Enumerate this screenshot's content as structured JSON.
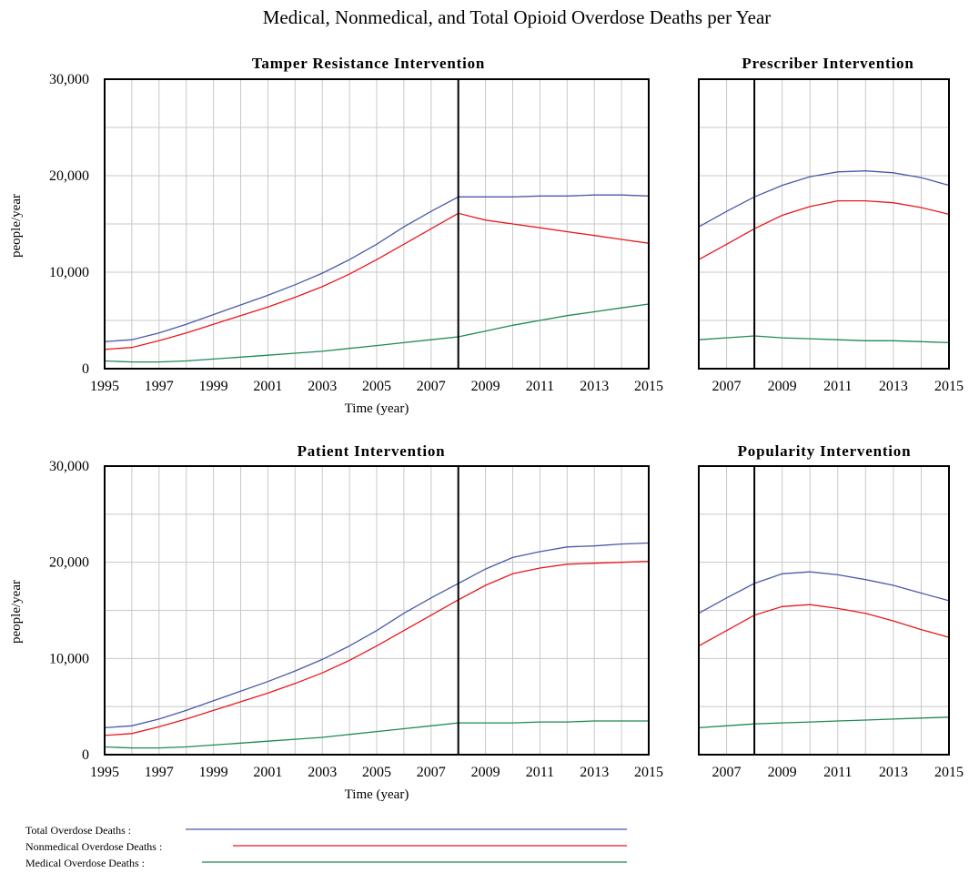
{
  "chart_data": {
    "title": "Medical, Nonmedical, and Total Opioid Overdose Deaths per Year",
    "type": "line",
    "series_styles": [
      {
        "key": "total",
        "name": "Total Overdose Deaths :",
        "color": "#4a5aa8"
      },
      {
        "key": "nonmedical",
        "name": "Nonmedical Overdose Deaths :",
        "color": "#e8191e"
      },
      {
        "key": "medical",
        "name": "Medical Overdose Deaths :",
        "color": "#1e8a55"
      }
    ],
    "panels": [
      {
        "id": "tamper",
        "title": "Tamper Resistance Intervention",
        "xlabel": "Time (year)",
        "ylabel": "people/year",
        "xlim": [
          1995,
          2015
        ],
        "ylim": [
          0,
          30000
        ],
        "xticks": [
          "1995",
          "1997",
          "1999",
          "2001",
          "2003",
          "2005",
          "2007",
          "2009",
          "2011",
          "2013",
          "2015"
        ],
        "yticks": [
          "0",
          "10,000",
          "20,000",
          "30,000"
        ],
        "intervention_year": 2008,
        "x": [
          1995,
          1996,
          1997,
          1998,
          1999,
          2000,
          2001,
          2002,
          2003,
          2004,
          2005,
          2006,
          2007,
          2008,
          2009,
          2010,
          2011,
          2012,
          2013,
          2014,
          2015
        ],
        "series": {
          "total": [
            2800,
            3000,
            3700,
            4600,
            5600,
            6600,
            7600,
            8700,
            9900,
            11300,
            12900,
            14700,
            16300,
            17800,
            17800,
            17800,
            17900,
            17900,
            18000,
            18000,
            17900
          ],
          "nonmedical": [
            2000,
            2200,
            2900,
            3700,
            4600,
            5500,
            6400,
            7400,
            8500,
            9800,
            11300,
            12900,
            14500,
            16100,
            15400,
            15000,
            14600,
            14200,
            13800,
            13400,
            13000
          ],
          "medical": [
            800,
            700,
            700,
            800,
            1000,
            1200,
            1400,
            1600,
            1800,
            2100,
            2400,
            2700,
            3000,
            3300,
            3900,
            4500,
            5000,
            5500,
            5900,
            6300,
            6700
          ]
        }
      },
      {
        "id": "prescriber",
        "title": "Prescriber Intervention",
        "xlabel": "",
        "ylabel": "",
        "xlim": [
          2006,
          2015
        ],
        "ylim": [
          0,
          30000
        ],
        "xticks": [
          "2007",
          "2009",
          "2011",
          "2013",
          "2015"
        ],
        "yticks": [],
        "intervention_year": 2008,
        "x": [
          2006,
          2007,
          2008,
          2009,
          2010,
          2011,
          2012,
          2013,
          2014,
          2015
        ],
        "series": {
          "total": [
            14700,
            16300,
            17800,
            19000,
            19900,
            20400,
            20500,
            20300,
            19800,
            19000
          ],
          "nonmedical": [
            11300,
            12900,
            14500,
            15900,
            16800,
            17400,
            17400,
            17200,
            16700,
            16000
          ],
          "medical": [
            3000,
            3200,
            3400,
            3200,
            3100,
            3000,
            2900,
            2900,
            2800,
            2700
          ]
        }
      },
      {
        "id": "patient",
        "title": "Patient Intervention",
        "xlabel": "Time (year)",
        "ylabel": "people/year",
        "xlim": [
          1995,
          2015
        ],
        "ylim": [
          0,
          30000
        ],
        "xticks": [
          "1995",
          "1997",
          "1999",
          "2001",
          "2003",
          "2005",
          "2007",
          "2009",
          "2011",
          "2013",
          "2015"
        ],
        "yticks": [
          "0",
          "10,000",
          "20,000",
          "30,000"
        ],
        "intervention_year": 2008,
        "x": [
          1995,
          1996,
          1997,
          1998,
          1999,
          2000,
          2001,
          2002,
          2003,
          2004,
          2005,
          2006,
          2007,
          2008,
          2009,
          2010,
          2011,
          2012,
          2013,
          2014,
          2015
        ],
        "series": {
          "total": [
            2800,
            3000,
            3700,
            4600,
            5600,
            6600,
            7600,
            8700,
            9900,
            11300,
            12900,
            14700,
            16300,
            17800,
            19300,
            20500,
            21100,
            21600,
            21700,
            21900,
            22000
          ],
          "nonmedical": [
            2000,
            2200,
            2900,
            3700,
            4600,
            5500,
            6400,
            7400,
            8500,
            9800,
            11300,
            12900,
            14500,
            16100,
            17600,
            18800,
            19400,
            19800,
            19900,
            20000,
            20100
          ],
          "medical": [
            800,
            700,
            700,
            800,
            1000,
            1200,
            1400,
            1600,
            1800,
            2100,
            2400,
            2700,
            3000,
            3300,
            3300,
            3300,
            3400,
            3400,
            3500,
            3500,
            3500
          ]
        }
      },
      {
        "id": "popularity",
        "title": "Popularity Intervention",
        "xlabel": "",
        "ylabel": "",
        "xlim": [
          2006,
          2015
        ],
        "ylim": [
          0,
          30000
        ],
        "xticks": [
          "2007",
          "2009",
          "2011",
          "2013",
          "2015"
        ],
        "yticks": [],
        "intervention_year": 2008,
        "x": [
          2006,
          2007,
          2008,
          2009,
          2010,
          2011,
          2012,
          2013,
          2014,
          2015
        ],
        "series": {
          "total": [
            14700,
            16300,
            17800,
            18800,
            19000,
            18700,
            18200,
            17600,
            16800,
            16000
          ],
          "nonmedical": [
            11300,
            12900,
            14500,
            15400,
            15600,
            15200,
            14700,
            13900,
            13000,
            12200
          ],
          "medical": [
            2800,
            3000,
            3200,
            3300,
            3400,
            3500,
            3600,
            3700,
            3800,
            3900
          ]
        }
      }
    ]
  }
}
